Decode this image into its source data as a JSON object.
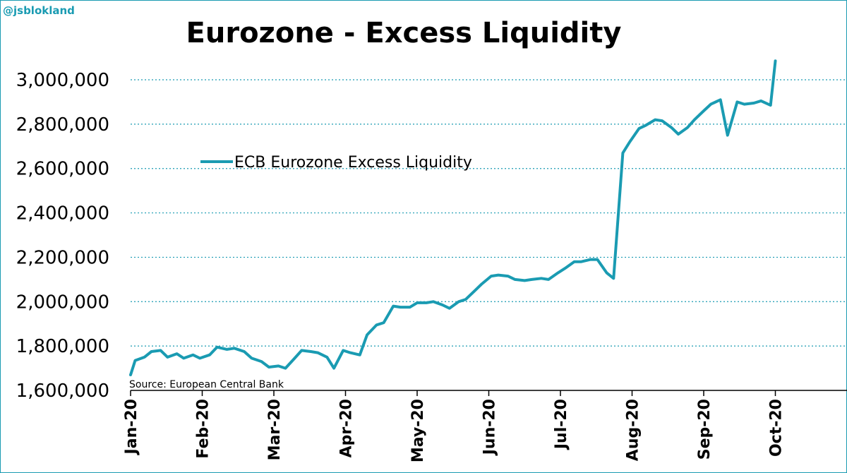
{
  "watermark": "@jsblokland",
  "chart_data": {
    "type": "line",
    "title": "Eurozone - Excess Liquidity",
    "source": "Source: European Central Bank",
    "ylim": [
      1600000,
      3000000
    ],
    "yticks": [
      "1,600,000",
      "1,800,000",
      "2,000,000",
      "2,200,000",
      "2,400,000",
      "2,600,000",
      "2,800,000",
      "3,000,000"
    ],
    "xticks": [
      "Jan-20",
      "Feb-20",
      "Mar-20",
      "Apr-20",
      "May-20",
      "Jun-20",
      "Jul-20",
      "Aug-20",
      "Sep-20",
      "Oct-20"
    ],
    "grid": true,
    "legend_position": "upper-left",
    "colors": {
      "series": "#1a9bb2",
      "grid": "#1a9bb2"
    },
    "series": [
      {
        "name": "ECB Eurozone Excess Liquidity",
        "x": [
          "2020-01-01",
          "2020-01-03",
          "2020-01-07",
          "2020-01-10",
          "2020-01-14",
          "2020-01-17",
          "2020-01-21",
          "2020-01-24",
          "2020-01-28",
          "2020-01-31",
          "2020-02-04",
          "2020-02-07",
          "2020-02-11",
          "2020-02-14",
          "2020-02-18",
          "2020-02-21",
          "2020-02-25",
          "2020-02-28",
          "2020-03-03",
          "2020-03-06",
          "2020-03-10",
          "2020-03-13",
          "2020-03-17",
          "2020-03-20",
          "2020-03-24",
          "2020-03-27",
          "2020-03-31",
          "2020-04-03",
          "2020-04-07",
          "2020-04-10",
          "2020-04-14",
          "2020-04-17",
          "2020-04-21",
          "2020-04-24",
          "2020-04-28",
          "2020-05-01",
          "2020-05-05",
          "2020-05-08",
          "2020-05-12",
          "2020-05-15",
          "2020-05-19",
          "2020-05-22",
          "2020-05-26",
          "2020-05-29",
          "2020-06-02",
          "2020-06-05",
          "2020-06-09",
          "2020-06-12",
          "2020-06-16",
          "2020-06-19",
          "2020-06-23",
          "2020-06-26",
          "2020-06-30",
          "2020-07-03",
          "2020-07-07",
          "2020-07-10",
          "2020-07-14",
          "2020-07-17",
          "2020-07-21",
          "2020-07-24",
          "2020-07-28",
          "2020-07-31",
          "2020-08-04",
          "2020-08-07",
          "2020-08-11",
          "2020-08-14",
          "2020-08-18",
          "2020-08-21",
          "2020-08-25",
          "2020-08-28",
          "2020-09-01",
          "2020-09-04",
          "2020-09-08",
          "2020-09-11",
          "2020-09-15",
          "2020-09-18",
          "2020-09-22",
          "2020-09-25",
          "2020-09-29",
          "2020-10-01"
        ],
        "values": [
          1670000,
          1735000,
          1750000,
          1775000,
          1780000,
          1750000,
          1765000,
          1745000,
          1760000,
          1745000,
          1760000,
          1795000,
          1785000,
          1790000,
          1775000,
          1745000,
          1730000,
          1705000,
          1710000,
          1700000,
          1745000,
          1780000,
          1775000,
          1770000,
          1750000,
          1700000,
          1780000,
          1770000,
          1760000,
          1850000,
          1895000,
          1905000,
          1980000,
          1975000,
          1975000,
          1995000,
          1995000,
          2000000,
          1985000,
          1970000,
          2000000,
          2010000,
          2050000,
          2080000,
          2115000,
          2120000,
          2115000,
          2100000,
          2095000,
          2100000,
          2105000,
          2100000,
          2130000,
          2150000,
          2180000,
          2180000,
          2190000,
          2190000,
          2130000,
          2105000,
          2670000,
          2720000,
          2780000,
          2795000,
          2820000,
          2815000,
          2785000,
          2755000,
          2785000,
          2820000,
          2860000,
          2890000,
          2910000,
          2750000,
          2900000,
          2890000,
          2895000,
          2905000,
          2885000,
          3085000
        ]
      }
    ]
  }
}
